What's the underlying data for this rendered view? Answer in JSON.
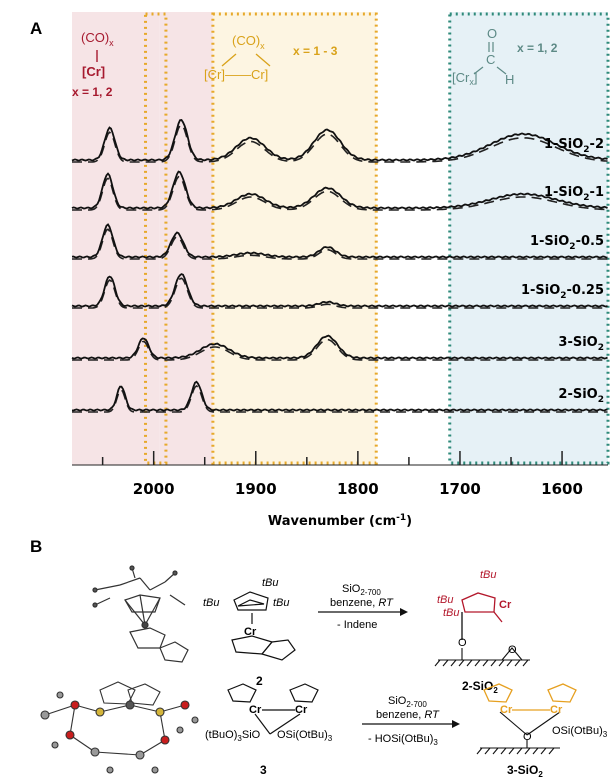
{
  "panel_a": {
    "letter": "A",
    "annotations": {
      "mono_top": "(CO)",
      "mono_sub": "x",
      "mono_cr": "[Cr]",
      "mono_x": "x = 1, 2",
      "bridge_top": "(CO)",
      "bridge_sub": "x",
      "bridge_cr": "[Cr]——Cr]",
      "bridge_x": "x = 1 - 3",
      "acyl_o": "O",
      "acyl_c": "C",
      "acyl_h": "H",
      "acyl_cr": "[Cr",
      "acyl_sub": "x",
      "acyl_cr_end": "]",
      "acyl_x": "x = 1, 2"
    },
    "colors": {
      "region_mono_fill": "#f6e4e6",
      "region_bridge_fill": "#fdf5e2",
      "region_acyl_fill": "#e6f1f6",
      "dotted_orange": "#e7a92b",
      "dotted_teal": "#2f8a7a",
      "label_red": "#a6192e",
      "label_gold": "#d9a21a",
      "label_teal": "#5d8a86"
    }
  },
  "chart_data": {
    "type": "line",
    "title": "",
    "xlabel": "Wavenumber (cm-1)",
    "xlabel_main": "Wavenumber (cm",
    "xlabel_sup": "-1",
    "xlabel_end": ")",
    "ylabel": "",
    "x_reversed": true,
    "xlim": [
      2080,
      1555
    ],
    "xticks": [
      2000,
      1900,
      1800,
      1700,
      1600
    ],
    "xtick_labels": [
      "2000",
      "1900",
      "1800",
      "1700",
      "1600"
    ],
    "grid": false,
    "series": [
      {
        "name": "1-SiO2-2",
        "label_main": "1-SiO",
        "label_sub": "2",
        "label_end": "-2",
        "peaks": [
          {
            "x": 2043,
            "h": 0.8,
            "w": 5
          },
          {
            "x": 1973,
            "h": 1.0,
            "w": 6
          },
          {
            "x": 1905,
            "h": 0.55,
            "w": 14
          },
          {
            "x": 1830,
            "h": 0.75,
            "w": 13
          },
          {
            "x": 1638,
            "h": 0.65,
            "w": 32
          }
        ]
      },
      {
        "name": "1-SiO2-1",
        "label_main": "1-SiO",
        "label_sub": "2",
        "label_end": "-1",
        "peaks": [
          {
            "x": 2045,
            "h": 0.85,
            "w": 5
          },
          {
            "x": 1975,
            "h": 0.9,
            "w": 6
          },
          {
            "x": 1905,
            "h": 0.35,
            "w": 14
          },
          {
            "x": 1830,
            "h": 0.5,
            "w": 13
          },
          {
            "x": 1638,
            "h": 0.35,
            "w": 32
          }
        ]
      },
      {
        "name": "1-SiO2-0.5",
        "label_main": "1-SiO",
        "label_sub": "2",
        "label_end": "-0.5",
        "peaks": [
          {
            "x": 2045,
            "h": 0.8,
            "w": 5
          },
          {
            "x": 1977,
            "h": 0.6,
            "w": 6
          },
          {
            "x": 1905,
            "h": 0.1,
            "w": 14
          },
          {
            "x": 1830,
            "h": 0.25,
            "w": 8
          }
        ]
      },
      {
        "name": "1-SiO2-0.25",
        "label_main": "1-SiO",
        "label_sub": "2",
        "label_end": "-0.25",
        "peaks": [
          {
            "x": 2043,
            "h": 0.75,
            "w": 5
          },
          {
            "x": 1973,
            "h": 0.8,
            "w": 6
          },
          {
            "x": 1830,
            "h": 0.1,
            "w": 8
          }
        ]
      },
      {
        "name": "3-SiO2",
        "label_main": "3-SiO",
        "label_sub": "2",
        "label_end": "",
        "peaks": [
          {
            "x": 2010,
            "h": 0.5,
            "w": 5
          },
          {
            "x": 1940,
            "h": 0.35,
            "w": 14
          },
          {
            "x": 1830,
            "h": 0.55,
            "w": 10
          }
        ]
      },
      {
        "name": "2-SiO2",
        "label_main": "2-SiO",
        "label_sub": "2",
        "label_end": "",
        "peaks": [
          {
            "x": 2032,
            "h": 0.6,
            "w": 4
          },
          {
            "x": 1958,
            "h": 0.7,
            "w": 5
          }
        ]
      }
    ],
    "regions": [
      {
        "from": 2080,
        "to": 1994,
        "kind": "mono"
      },
      {
        "from": 1994,
        "to": 1942,
        "kind": "mono"
      },
      {
        "from": 1942,
        "to": 1782,
        "kind": "bridge"
      },
      {
        "from": 1710,
        "to": 1555,
        "kind": "acyl"
      }
    ],
    "dotted_boxes": [
      {
        "from": 2008,
        "to": 1988,
        "color": "orange"
      },
      {
        "from": 1942,
        "to": 1782,
        "color": "orange"
      },
      {
        "from": 1710,
        "to": 1555,
        "color": "teal"
      }
    ]
  },
  "panel_b": {
    "letter": "B",
    "row1": {
      "substituent_tbu_top": "tBu",
      "substituent_tbu_left": "tBu",
      "substituent_tbu_right": "tBu",
      "metal": "Cr",
      "reagent_main": "SiO",
      "reagent_sub": "2-700",
      "solvent": "benzene,",
      "solvent_rt": "RT",
      "byproduct": "- Indene",
      "compound_label": "2",
      "product_tbu_top": "tBu",
      "product_tbu_left": "tBu",
      "product_tbu_mid": "tBu",
      "product_metal": "Cr",
      "product_o": "O",
      "surface_o": "O",
      "product_label_main": "2-SiO",
      "product_label_sub": "2"
    },
    "row2": {
      "metal_left": "Cr",
      "metal_right": "Cr",
      "ligand_left": "(tBuO)",
      "ligand_left_sub": "3",
      "ligand_left_end": "SiO",
      "ligand_right": "OSi(OtBu)",
      "ligand_right_sub": "3",
      "reagent_main": "SiO",
      "reagent_sub": "2-700",
      "solvent": "benzene,",
      "solvent_rt": "RT",
      "byproduct": "- HOSi(OtBu)",
      "byproduct_sub": "3",
      "compound_label": "3",
      "product_metal_left": "Cr",
      "product_metal_right": "Cr",
      "product_o": "O",
      "product_ligand": "OSi(OtBu)",
      "product_ligand_sub": "3",
      "product_label_main": "3-SiO",
      "product_label_sub": "2"
    },
    "colors": {
      "product_red": "#b3172b",
      "product_orange": "#e6a020"
    }
  }
}
